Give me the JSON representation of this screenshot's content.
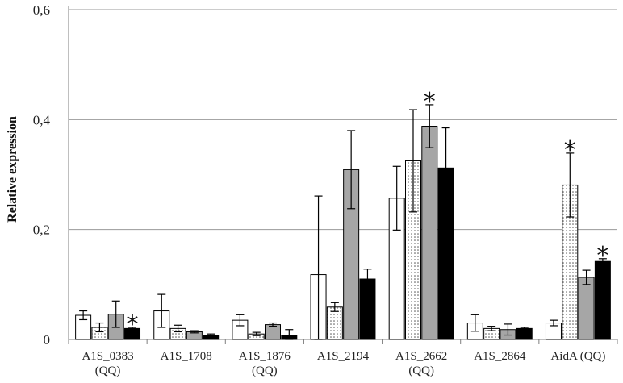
{
  "chart_data": {
    "type": "bar",
    "title": "",
    "xlabel": "",
    "ylabel": "Relative expression",
    "ylim": [
      0,
      0.6
    ],
    "yticks": [
      "0",
      "0,2",
      "0,4",
      "0,6"
    ],
    "grid": true,
    "categories": [
      [
        "A1S_0383",
        "(QQ)"
      ],
      [
        "A1S_1708"
      ],
      [
        "A1S_1876",
        "(QQ)"
      ],
      [
        "A1S_2194"
      ],
      [
        "A1S_2662",
        "(QQ)"
      ],
      [
        "A1S_2864"
      ],
      [
        "AidA (QQ)"
      ]
    ],
    "series": [
      {
        "pattern": "white",
        "values": [
          0.044,
          0.052,
          0.035,
          0.118,
          0.257,
          0.03,
          0.03
        ],
        "errors": [
          0.008,
          0.03,
          0.01,
          0.143,
          0.058,
          0.015,
          0.005
        ]
      },
      {
        "pattern": "dotted",
        "values": [
          0.022,
          0.02,
          0.01,
          0.059,
          0.325,
          0.02,
          0.281
        ],
        "errors": [
          0.008,
          0.006,
          0.003,
          0.008,
          0.093,
          0.004,
          0.058
        ]
      },
      {
        "pattern": "gray",
        "values": [
          0.046,
          0.014,
          0.027,
          0.309,
          0.388,
          0.018,
          0.113
        ],
        "errors": [
          0.024,
          0.002,
          0.003,
          0.071,
          0.039,
          0.01,
          0.013
        ]
      },
      {
        "pattern": "black",
        "values": [
          0.02,
          0.008,
          0.008,
          0.11,
          0.312,
          0.02,
          0.142
        ],
        "errors": [
          0.002,
          0.002,
          0.01,
          0.018,
          0.073,
          0.002,
          0.005
        ]
      }
    ],
    "significance": [
      {
        "category": 0,
        "series": 3,
        "label": "*"
      },
      {
        "category": 4,
        "series": 2,
        "label": "*"
      },
      {
        "category": 6,
        "series": 1,
        "label": "*"
      },
      {
        "category": 6,
        "series": 3,
        "label": "*"
      }
    ],
    "colors": {
      "white": "#ffffff",
      "gray": "#a6a6a6",
      "black": "#000000",
      "dots": "#555555",
      "grid": "#9a9a9a",
      "axis": "#7f7f7f"
    }
  }
}
